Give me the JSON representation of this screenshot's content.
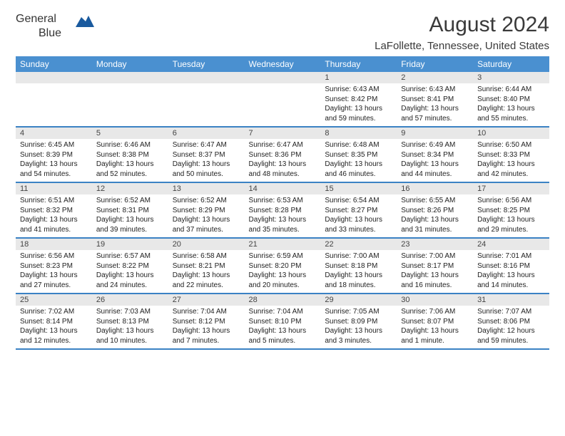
{
  "brand": {
    "part1": "General",
    "part2": "Blue",
    "triangle_color": "#1a5a9e"
  },
  "title": {
    "month": "August 2024",
    "location": "LaFollette, Tennessee, United States"
  },
  "colors": {
    "header_bg": "#4a90d0",
    "accent": "#3b82c4",
    "row_alt": "#e8e8e8",
    "text": "#333333"
  },
  "weekdays": [
    "Sunday",
    "Monday",
    "Tuesday",
    "Wednesday",
    "Thursday",
    "Friday",
    "Saturday"
  ],
  "weeks": [
    [
      null,
      null,
      null,
      null,
      {
        "n": "1",
        "sunrise": "6:43 AM",
        "sunset": "8:42 PM",
        "daylight": "13 hours and 59 minutes."
      },
      {
        "n": "2",
        "sunrise": "6:43 AM",
        "sunset": "8:41 PM",
        "daylight": "13 hours and 57 minutes."
      },
      {
        "n": "3",
        "sunrise": "6:44 AM",
        "sunset": "8:40 PM",
        "daylight": "13 hours and 55 minutes."
      }
    ],
    [
      {
        "n": "4",
        "sunrise": "6:45 AM",
        "sunset": "8:39 PM",
        "daylight": "13 hours and 54 minutes."
      },
      {
        "n": "5",
        "sunrise": "6:46 AM",
        "sunset": "8:38 PM",
        "daylight": "13 hours and 52 minutes."
      },
      {
        "n": "6",
        "sunrise": "6:47 AM",
        "sunset": "8:37 PM",
        "daylight": "13 hours and 50 minutes."
      },
      {
        "n": "7",
        "sunrise": "6:47 AM",
        "sunset": "8:36 PM",
        "daylight": "13 hours and 48 minutes."
      },
      {
        "n": "8",
        "sunrise": "6:48 AM",
        "sunset": "8:35 PM",
        "daylight": "13 hours and 46 minutes."
      },
      {
        "n": "9",
        "sunrise": "6:49 AM",
        "sunset": "8:34 PM",
        "daylight": "13 hours and 44 minutes."
      },
      {
        "n": "10",
        "sunrise": "6:50 AM",
        "sunset": "8:33 PM",
        "daylight": "13 hours and 42 minutes."
      }
    ],
    [
      {
        "n": "11",
        "sunrise": "6:51 AM",
        "sunset": "8:32 PM",
        "daylight": "13 hours and 41 minutes."
      },
      {
        "n": "12",
        "sunrise": "6:52 AM",
        "sunset": "8:31 PM",
        "daylight": "13 hours and 39 minutes."
      },
      {
        "n": "13",
        "sunrise": "6:52 AM",
        "sunset": "8:29 PM",
        "daylight": "13 hours and 37 minutes."
      },
      {
        "n": "14",
        "sunrise": "6:53 AM",
        "sunset": "8:28 PM",
        "daylight": "13 hours and 35 minutes."
      },
      {
        "n": "15",
        "sunrise": "6:54 AM",
        "sunset": "8:27 PM",
        "daylight": "13 hours and 33 minutes."
      },
      {
        "n": "16",
        "sunrise": "6:55 AM",
        "sunset": "8:26 PM",
        "daylight": "13 hours and 31 minutes."
      },
      {
        "n": "17",
        "sunrise": "6:56 AM",
        "sunset": "8:25 PM",
        "daylight": "13 hours and 29 minutes."
      }
    ],
    [
      {
        "n": "18",
        "sunrise": "6:56 AM",
        "sunset": "8:23 PM",
        "daylight": "13 hours and 27 minutes."
      },
      {
        "n": "19",
        "sunrise": "6:57 AM",
        "sunset": "8:22 PM",
        "daylight": "13 hours and 24 minutes."
      },
      {
        "n": "20",
        "sunrise": "6:58 AM",
        "sunset": "8:21 PM",
        "daylight": "13 hours and 22 minutes."
      },
      {
        "n": "21",
        "sunrise": "6:59 AM",
        "sunset": "8:20 PM",
        "daylight": "13 hours and 20 minutes."
      },
      {
        "n": "22",
        "sunrise": "7:00 AM",
        "sunset": "8:18 PM",
        "daylight": "13 hours and 18 minutes."
      },
      {
        "n": "23",
        "sunrise": "7:00 AM",
        "sunset": "8:17 PM",
        "daylight": "13 hours and 16 minutes."
      },
      {
        "n": "24",
        "sunrise": "7:01 AM",
        "sunset": "8:16 PM",
        "daylight": "13 hours and 14 minutes."
      }
    ],
    [
      {
        "n": "25",
        "sunrise": "7:02 AM",
        "sunset": "8:14 PM",
        "daylight": "13 hours and 12 minutes."
      },
      {
        "n": "26",
        "sunrise": "7:03 AM",
        "sunset": "8:13 PM",
        "daylight": "13 hours and 10 minutes."
      },
      {
        "n": "27",
        "sunrise": "7:04 AM",
        "sunset": "8:12 PM",
        "daylight": "13 hours and 7 minutes."
      },
      {
        "n": "28",
        "sunrise": "7:04 AM",
        "sunset": "8:10 PM",
        "daylight": "13 hours and 5 minutes."
      },
      {
        "n": "29",
        "sunrise": "7:05 AM",
        "sunset": "8:09 PM",
        "daylight": "13 hours and 3 minutes."
      },
      {
        "n": "30",
        "sunrise": "7:06 AM",
        "sunset": "8:07 PM",
        "daylight": "13 hours and 1 minute."
      },
      {
        "n": "31",
        "sunrise": "7:07 AM",
        "sunset": "8:06 PM",
        "daylight": "12 hours and 59 minutes."
      }
    ]
  ],
  "labels": {
    "sunrise": "Sunrise: ",
    "sunset": "Sunset: ",
    "daylight": "Daylight: "
  }
}
